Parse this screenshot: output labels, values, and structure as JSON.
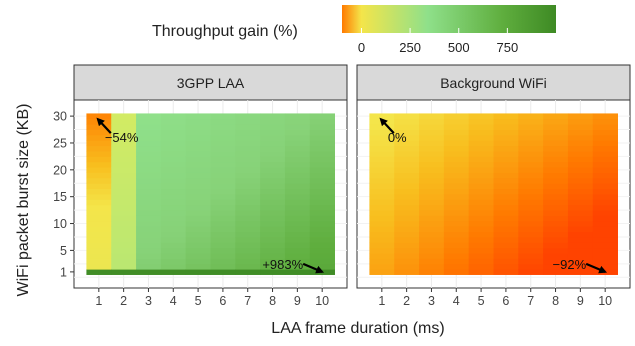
{
  "legend": {
    "title": "Throughput gain (%)",
    "ticks": [
      0,
      250,
      500,
      750
    ],
    "range": [
      -100,
      1000
    ],
    "colors": [
      "#ff7a00",
      "#f4e54a",
      "#8fe08a",
      "#5fae3e",
      "#3e8a24"
    ]
  },
  "axes": {
    "xlabel": "LAA frame duration (ms)",
    "ylabel": "WiFi packet burst size (KB)"
  },
  "chart_data": [
    {
      "type": "heatmap",
      "title": "3GPP LAA",
      "x": [
        1,
        2,
        3,
        4,
        5,
        6,
        7,
        8,
        9,
        10
      ],
      "y_ticks": [
        1,
        5,
        10,
        15,
        20,
        25,
        30
      ],
      "y_range": [
        1,
        30
      ],
      "value_range": [
        -54,
        983
      ],
      "annotations": [
        {
          "text": "−54%",
          "x": 1,
          "y": 30
        },
        {
          "text": "+983%",
          "x": 10,
          "y": 1
        }
      ]
    },
    {
      "type": "heatmap",
      "title": "Background WiFi",
      "x": [
        1,
        2,
        3,
        4,
        5,
        6,
        7,
        8,
        9,
        10
      ],
      "y_ticks": [
        1,
        5,
        10,
        15,
        20,
        25,
        30
      ],
      "y_range": [
        1,
        30
      ],
      "value_range": [
        -92,
        0
      ],
      "annotations": [
        {
          "text": "0%",
          "x": 1,
          "y": 30
        },
        {
          "text": "−92%",
          "x": 10,
          "y": 1
        }
      ]
    }
  ]
}
